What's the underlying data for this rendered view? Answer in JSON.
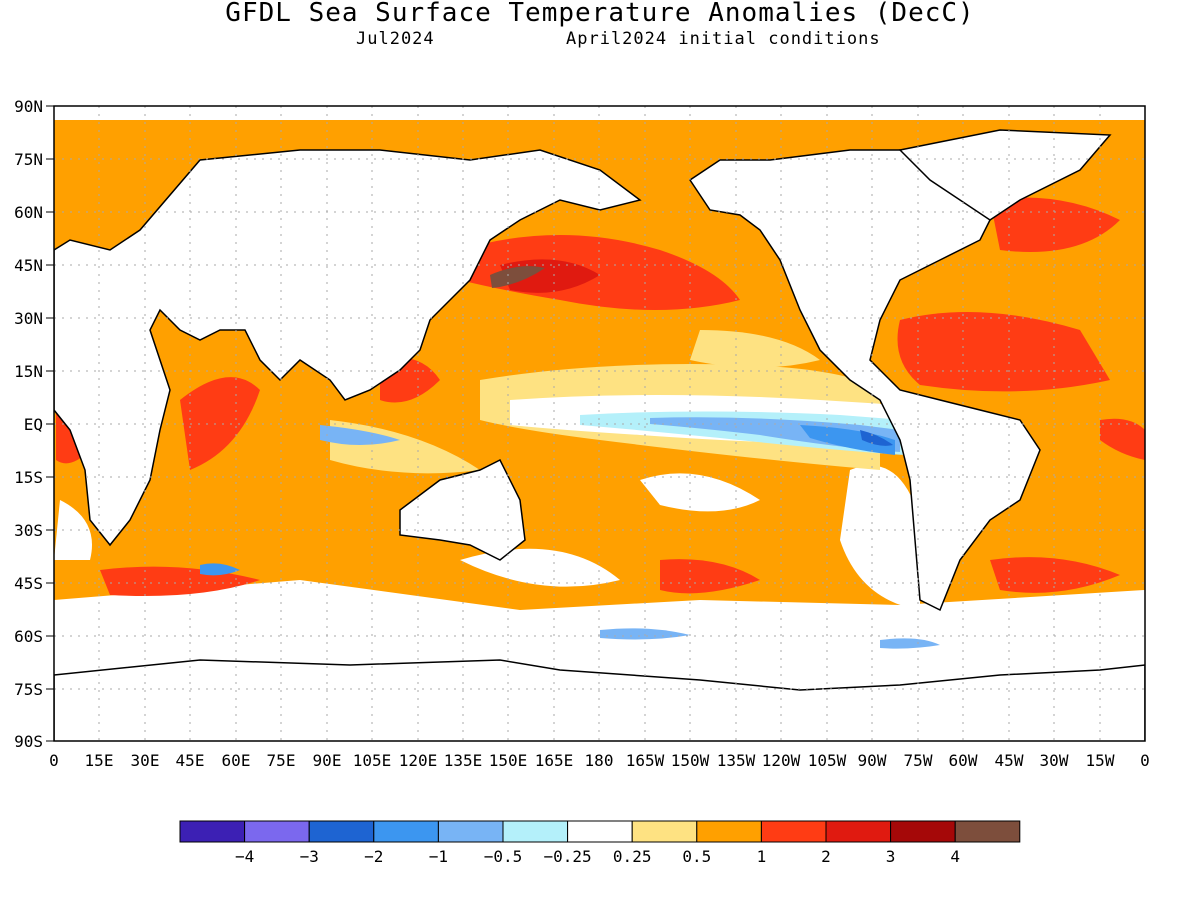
{
  "title": "GFDL Sea Surface Temperature Anomalies (DecC)",
  "subtitle_left": "Jul2024",
  "subtitle_right": "April2024 initial conditions",
  "lat_labels": [
    "90N",
    "75N",
    "60N",
    "45N",
    "30N",
    "15N",
    "EQ",
    "15S",
    "30S",
    "45S",
    "60S",
    "75S",
    "90S"
  ],
  "lon_labels": [
    "0",
    "15E",
    "30E",
    "45E",
    "60E",
    "75E",
    "90E",
    "105E",
    "120E",
    "135E",
    "150E",
    "165E",
    "180",
    "165W",
    "150W",
    "135W",
    "120W",
    "105W",
    "90W",
    "75W",
    "60W",
    "45W",
    "30W",
    "15W",
    "0"
  ],
  "colorbar": {
    "colors": [
      "#3c20b4",
      "#7b68ee",
      "#1e64d2",
      "#3c96f0",
      "#78b4f5",
      "#b4f0fa",
      "#ffffff",
      "#fee282",
      "#ffa000",
      "#ff3c14",
      "#e01a10",
      "#a50808",
      "#7d4e3c"
    ],
    "labels": [
      "-4",
      "-3",
      "-2",
      "-1",
      "-0.5",
      "-0.25",
      "0.25",
      "0.5",
      "1",
      "2",
      "3",
      "4"
    ]
  },
  "chart_data": {
    "type": "heatmap",
    "title": "GFDL Sea Surface Temperature Anomalies (DecC)",
    "subtitle": [
      "Jul2024",
      "April2024 initial conditions"
    ],
    "units": "DecC",
    "x_range": [
      "0",
      "0"
    ],
    "y_range": [
      "90S",
      "90N"
    ],
    "grid": true,
    "contour_levels": [
      -4,
      -3,
      -2,
      -1,
      -0.5,
      -0.25,
      0.25,
      0.5,
      1,
      2,
      3,
      4
    ]
  }
}
